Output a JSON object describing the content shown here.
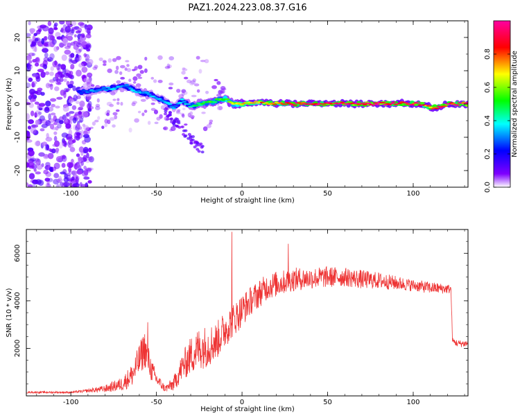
{
  "title": "PAZ1.2024.223.08.37.G16",
  "chart_data": [
    {
      "type": "heatmap",
      "xlabel": "Height of straight line (km)",
      "ylabel": "Frequency (Hz)",
      "xlim": [
        -126,
        132
      ],
      "ylim": [
        -25,
        25
      ],
      "x_ticks": [
        "-100",
        "-50",
        "0",
        "50",
        "100"
      ],
      "y_ticks": [
        "20",
        "10",
        "0",
        "-10",
        "-20"
      ],
      "colorbar": {
        "label": "Normalized spectral amplitude",
        "range": [
          0,
          1
        ],
        "ticks": [
          "0.0",
          "0.2",
          "0.4",
          "0.6",
          "0.8"
        ],
        "colormap": [
          "#ffffff",
          "#7f00ff",
          "#0000ff",
          "#00ffff",
          "#00ff00",
          "#ffff00",
          "#ff0000",
          "#ff00a0"
        ]
      },
      "ridge": {
        "x": [
          -95,
          -88,
          -80,
          -72,
          -68,
          -62,
          -55,
          -50,
          -45,
          -40,
          -35,
          -30,
          -25,
          -20,
          -10,
          -5,
          0,
          10,
          20,
          30,
          40,
          50,
          60,
          70,
          80,
          90,
          100,
          105,
          110,
          115,
          120,
          130
        ],
        "frequency": [
          3.5,
          4,
          4.5,
          5,
          5.5,
          4,
          3,
          2,
          1,
          -1,
          1,
          -0.5,
          0,
          0.5,
          1.5,
          0,
          0,
          0.5,
          0.2,
          0,
          0.1,
          0,
          0.2,
          0,
          0.1,
          0.2,
          0.1,
          0,
          -1,
          -1,
          0,
          0
        ],
        "amplitude": [
          0.25,
          0.3,
          0.3,
          0.35,
          0.3,
          0.35,
          0.35,
          0.3,
          0.35,
          0.3,
          0.35,
          0.4,
          0.45,
          0.5,
          0.55,
          0.6,
          0.7,
          0.75,
          0.8,
          0.85,
          0.85,
          0.9,
          0.9,
          0.9,
          0.9,
          0.9,
          0.9,
          0.85,
          0.8,
          0.85,
          0.9,
          0.9
        ]
      }
    },
    {
      "type": "line",
      "xlabel": "Height of straight line (km)",
      "ylabel": "SNR (10 * v/v)",
      "xlim": [
        -126,
        132
      ],
      "ylim": [
        0,
        7000
      ],
      "x_ticks": [
        "-100",
        "-50",
        "0",
        "50",
        "100"
      ],
      "y_ticks": [
        "6000",
        "4000",
        "2000"
      ],
      "color": "#ee3333",
      "envelope": {
        "x": [
          -126,
          -110,
          -100,
          -92,
          -80,
          -70,
          -64,
          -60,
          -57,
          -53,
          -50,
          -45,
          -40,
          -35,
          -30,
          -25,
          -20,
          -15,
          -10,
          -5,
          0,
          5,
          10,
          15,
          20,
          25,
          30,
          40,
          50,
          60,
          70,
          80,
          90,
          100,
          110,
          120,
          122,
          123,
          126,
          130,
          132
        ],
        "y": [
          150,
          150,
          150,
          200,
          300,
          500,
          900,
          1500,
          2000,
          1100,
          700,
          300,
          500,
          1200,
          1700,
          2000,
          2100,
          2300,
          2800,
          3200,
          3600,
          4000,
          4300,
          4600,
          4700,
          4800,
          4900,
          4950,
          5000,
          5000,
          4900,
          4850,
          4750,
          4650,
          4550,
          4500,
          4500,
          2300,
          2200,
          2200,
          2200
        ],
        "noise_amplitude": [
          40,
          40,
          40,
          60,
          150,
          300,
          500,
          700,
          800,
          500,
          300,
          150,
          300,
          600,
          800,
          900,
          900,
          800,
          800,
          700,
          700,
          600,
          600,
          550,
          550,
          500,
          500,
          450,
          450,
          400,
          400,
          350,
          300,
          250,
          250,
          200,
          200,
          150,
          150,
          150,
          150
        ]
      },
      "spikes": [
        {
          "x": -6,
          "y": 6900
        },
        {
          "x": -55,
          "y": 3100
        },
        {
          "x": 27,
          "y": 6400
        }
      ]
    }
  ]
}
